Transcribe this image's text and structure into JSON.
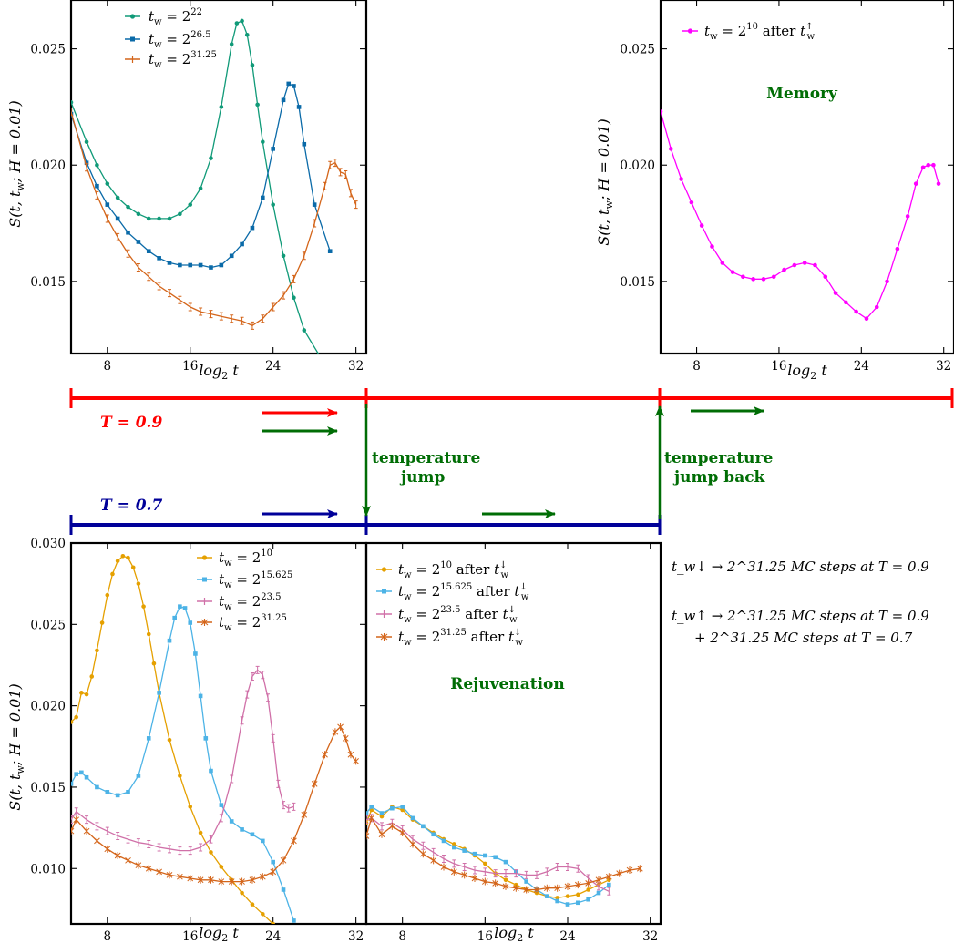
{
  "colors": {
    "red": "#ff0000",
    "blue": "#000099",
    "green": "#006d05",
    "green_series": "#109a78",
    "blue_series": "#0a6aa8",
    "orange_series": "#d4651a",
    "gold_series": "#e5a000",
    "sky_series": "#4cb3e6",
    "pink_series": "#d070a8",
    "magenta_series": "#ff00ff"
  },
  "timeline": {
    "T_high_label": "T = 0.9",
    "T_low_label": "T = 0.7",
    "jump_label_1": "temperature",
    "jump_label_2": "jump",
    "jump_back_label_1": "temperature",
    "jump_back_label_2": "jump back"
  },
  "notes": {
    "line1": "t_w↓ → 2^31.25 MC steps at T = 0.9",
    "line2": "t_w↑ → 2^31.25 MC steps at T = 0.9",
    "line3": "+ 2^31.25 MC steps at T = 0.7"
  },
  "chart_data": [
    {
      "id": "top-left",
      "type": "line",
      "xlabel": "log2 t",
      "ylabel": "S(t, t_w; H = 0.01)",
      "xlim": [
        4.5,
        33
      ],
      "ylim": [
        0.0119,
        0.0271
      ],
      "xticks": [
        8,
        16,
        24,
        32
      ],
      "yticks": [
        0.015,
        0.02,
        0.025
      ],
      "ytick_labels": [
        "0.015",
        "0.020",
        "0.025"
      ],
      "series": [
        {
          "name": "t_w = 2^22",
          "color": "#109a78",
          "marker": "circle",
          "x": [
            4.5,
            6,
            7,
            8,
            9,
            10,
            11,
            12,
            13,
            14,
            15,
            16,
            17,
            18,
            19,
            20,
            20.5,
            21,
            21.5,
            22,
            22.5,
            23,
            24,
            25,
            26,
            27,
            28.5
          ],
          "y": [
            0.0227,
            0.021,
            0.02,
            0.0192,
            0.0186,
            0.0182,
            0.0179,
            0.0177,
            0.0177,
            0.0177,
            0.0179,
            0.0183,
            0.019,
            0.0203,
            0.0225,
            0.0252,
            0.0261,
            0.0262,
            0.0256,
            0.0243,
            0.0226,
            0.021,
            0.0183,
            0.0161,
            0.0143,
            0.0129,
            0.0118
          ]
        },
        {
          "name": "t_w = 2^26.5",
          "color": "#0a6aa8",
          "marker": "square",
          "x": [
            4.5,
            6,
            7,
            8,
            9,
            10,
            11,
            12,
            13,
            14,
            15,
            16,
            17,
            18,
            19,
            20,
            21,
            22,
            23,
            24,
            25,
            25.5,
            26,
            26.5,
            27,
            28,
            29.5
          ],
          "y": [
            0.0222,
            0.0201,
            0.0191,
            0.0183,
            0.0177,
            0.0171,
            0.0167,
            0.0163,
            0.016,
            0.0158,
            0.0157,
            0.0157,
            0.0157,
            0.0156,
            0.0157,
            0.0161,
            0.0166,
            0.0173,
            0.0186,
            0.0207,
            0.0228,
            0.0235,
            0.0234,
            0.0225,
            0.0209,
            0.0183,
            0.0163
          ]
        },
        {
          "name": "t_w = 2^31.25",
          "color": "#d4651a",
          "marker": "bar",
          "x": [
            4.5,
            6,
            7,
            8,
            9,
            10,
            11,
            12,
            13,
            14,
            15,
            16,
            17,
            18,
            19,
            20,
            21,
            22,
            23,
            24,
            25,
            26,
            27,
            28,
            29,
            29.5,
            30,
            30.5,
            31,
            31.5,
            32
          ],
          "y": [
            0.0223,
            0.0199,
            0.0187,
            0.0177,
            0.0169,
            0.0162,
            0.0156,
            0.0152,
            0.0148,
            0.0145,
            0.0142,
            0.0139,
            0.0137,
            0.0136,
            0.0135,
            0.0134,
            0.0133,
            0.0131,
            0.0134,
            0.0139,
            0.0144,
            0.0151,
            0.0161,
            0.0175,
            0.0191,
            0.02,
            0.0201,
            0.0197,
            0.0196,
            0.0188,
            0.0183
          ]
        }
      ]
    },
    {
      "id": "top-right",
      "type": "line",
      "xlabel": "log2 t",
      "ylabel": "S(t, t_w; H = 0.01)",
      "annotation": "Memory",
      "xlim": [
        4.5,
        33
      ],
      "ylim": [
        0.0119,
        0.0271
      ],
      "xticks": [
        8,
        16,
        24,
        32
      ],
      "yticks": [
        0.015,
        0.02,
        0.025
      ],
      "ytick_labels": [
        "0.015",
        "0.020",
        "0.025"
      ],
      "series": [
        {
          "name": "t_w = 2^10 after t_w↑",
          "color": "#ff00ff",
          "marker": "circle",
          "x": [
            4.5,
            5.5,
            6.5,
            7.5,
            8.5,
            9.5,
            10.5,
            11.5,
            12.5,
            13.5,
            14.5,
            15.5,
            16.5,
            17.5,
            18.5,
            19.5,
            20.5,
            21.5,
            22.5,
            23.5,
            24.5,
            25.5,
            26.5,
            27.5,
            28.5,
            29.3,
            30,
            30.5,
            31,
            31.5
          ],
          "y": [
            0.0223,
            0.0207,
            0.0194,
            0.0184,
            0.0174,
            0.0165,
            0.0158,
            0.0154,
            0.0152,
            0.0151,
            0.0151,
            0.0152,
            0.0155,
            0.0157,
            0.0158,
            0.0157,
            0.0152,
            0.0145,
            0.0141,
            0.0137,
            0.0134,
            0.0139,
            0.015,
            0.0164,
            0.0178,
            0.0192,
            0.0199,
            0.02,
            0.02,
            0.0192
          ]
        }
      ]
    },
    {
      "id": "bottom-left",
      "type": "line",
      "xlabel": "log2 t",
      "ylabel": "S(t, t_w; H = 0.01)",
      "xlim": [
        4.5,
        33
      ],
      "ylim": [
        0.0066,
        0.03
      ],
      "xticks": [
        8,
        16,
        24,
        32
      ],
      "yticks": [
        0.01,
        0.015,
        0.02,
        0.025,
        0.03
      ],
      "ytick_labels": [
        "0.010",
        "0.015",
        "0.020",
        "0.025",
        "0.030"
      ],
      "series": [
        {
          "name": "t_w = 2^10",
          "color": "#e5a000",
          "marker": "circle",
          "x": [
            4.5,
            5,
            5.5,
            6,
            6.5,
            7,
            7.5,
            8,
            8.5,
            9,
            9.5,
            10,
            10.5,
            11,
            11.5,
            12,
            12.5,
            13,
            14,
            15,
            16,
            17,
            18,
            19,
            20,
            21,
            22,
            23,
            24
          ],
          "y": [
            0.019,
            0.0193,
            0.0208,
            0.0207,
            0.0218,
            0.0234,
            0.0251,
            0.0268,
            0.0281,
            0.0289,
            0.0292,
            0.0291,
            0.0285,
            0.0275,
            0.0261,
            0.0244,
            0.0226,
            0.0208,
            0.0179,
            0.0157,
            0.0138,
            0.0122,
            0.011,
            0.0101,
            0.0093,
            0.0085,
            0.0078,
            0.0072,
            0.0066
          ]
        },
        {
          "name": "t_w = 2^15.625",
          "color": "#4cb3e6",
          "marker": "square",
          "x": [
            4.5,
            5,
            5.5,
            6,
            7,
            8,
            9,
            10,
            11,
            12,
            13,
            14,
            14.5,
            15,
            15.5,
            16,
            16.5,
            17,
            17.5,
            18,
            19,
            20,
            21,
            22,
            23,
            24,
            25,
            26
          ],
          "y": [
            0.0152,
            0.0158,
            0.0159,
            0.0156,
            0.015,
            0.0147,
            0.0145,
            0.0147,
            0.0157,
            0.018,
            0.0208,
            0.024,
            0.0254,
            0.0261,
            0.026,
            0.0251,
            0.0232,
            0.0206,
            0.018,
            0.016,
            0.0139,
            0.0129,
            0.0124,
            0.0121,
            0.0117,
            0.0104,
            0.0087,
            0.0068
          ]
        },
        {
          "name": "t_w = 2^23.5",
          "color": "#d070a8",
          "marker": "bar",
          "x": [
            4.5,
            5,
            6,
            7,
            8,
            9,
            10,
            11,
            12,
            13,
            14,
            15,
            16,
            17,
            18,
            19,
            20,
            21,
            21.5,
            22,
            22.5,
            23,
            23.5,
            24,
            24.5,
            25,
            25.5,
            26
          ],
          "y": [
            0.013,
            0.0135,
            0.013,
            0.0126,
            0.0123,
            0.012,
            0.0118,
            0.0116,
            0.0115,
            0.0113,
            0.0112,
            0.0111,
            0.0111,
            0.0113,
            0.0118,
            0.0131,
            0.0155,
            0.0191,
            0.0207,
            0.0218,
            0.0222,
            0.0219,
            0.0205,
            0.018,
            0.0152,
            0.0139,
            0.0137,
            0.0138
          ]
        },
        {
          "name": "t_w = 2^31.25",
          "color": "#d4651a",
          "marker": "star",
          "x": [
            4.5,
            5,
            6,
            7,
            8,
            9,
            10,
            11,
            12,
            13,
            14,
            15,
            16,
            17,
            18,
            19,
            20,
            21,
            22,
            23,
            24,
            25,
            26,
            27,
            28,
            29,
            30,
            30.5,
            31,
            31.5,
            32
          ],
          "y": [
            0.0123,
            0.013,
            0.0123,
            0.0117,
            0.0112,
            0.0108,
            0.0105,
            0.0102,
            0.01,
            0.0098,
            0.0096,
            0.0095,
            0.0094,
            0.0093,
            0.0093,
            0.0092,
            0.0092,
            0.0092,
            0.0093,
            0.0095,
            0.0098,
            0.0105,
            0.0117,
            0.0133,
            0.0152,
            0.017,
            0.0184,
            0.0187,
            0.018,
            0.017,
            0.0166
          ]
        }
      ]
    },
    {
      "id": "bottom-right",
      "type": "line",
      "xlabel": "log2 t",
      "annotation": "Rejuvenation",
      "xlim": [
        4.5,
        33
      ],
      "ylim": [
        0.0066,
        0.03
      ],
      "xticks": [
        8,
        16,
        24,
        32
      ],
      "series": [
        {
          "name": "t_w = 2^10 after t_w↓",
          "color": "#e5a000",
          "marker": "circle",
          "x": [
            4.5,
            5,
            6,
            7,
            8,
            9,
            10,
            11,
            12,
            13,
            14,
            15,
            16,
            17,
            18,
            19,
            20,
            21,
            22,
            23,
            24,
            25,
            26,
            27,
            28
          ],
          "y": [
            0.0128,
            0.0136,
            0.0132,
            0.0138,
            0.0136,
            0.013,
            0.0126,
            0.0122,
            0.0118,
            0.0115,
            0.0112,
            0.0108,
            0.0103,
            0.0097,
            0.0093,
            0.009,
            0.0087,
            0.0085,
            0.0083,
            0.0082,
            0.0083,
            0.0084,
            0.0087,
            0.009,
            0.0093
          ]
        },
        {
          "name": "t_w = 2^15.625 after t_w↓",
          "color": "#4cb3e6",
          "marker": "square",
          "x": [
            4.5,
            5,
            6,
            7,
            8,
            9,
            10,
            11,
            12,
            13,
            14,
            15,
            16,
            17,
            18,
            19,
            20,
            21,
            22,
            23,
            24,
            25,
            26,
            27,
            28
          ],
          "y": [
            0.0134,
            0.0138,
            0.0134,
            0.0137,
            0.0138,
            0.0131,
            0.0126,
            0.0121,
            0.0117,
            0.0113,
            0.0111,
            0.0109,
            0.0108,
            0.0107,
            0.0104,
            0.0098,
            0.0092,
            0.0087,
            0.0083,
            0.008,
            0.0078,
            0.0079,
            0.0081,
            0.0085,
            0.009
          ]
        },
        {
          "name": "t_w = 2^23.5 after t_w↓",
          "color": "#d070a8",
          "marker": "bar",
          "x": [
            4.5,
            5,
            6,
            7,
            8,
            9,
            10,
            11,
            12,
            13,
            14,
            15,
            16,
            17,
            18,
            19,
            20,
            21,
            22,
            23,
            24,
            25,
            26,
            27,
            28
          ],
          "y": [
            0.013,
            0.0131,
            0.0126,
            0.0128,
            0.0124,
            0.0118,
            0.0114,
            0.011,
            0.0106,
            0.0103,
            0.0101,
            0.0099,
            0.0098,
            0.0097,
            0.0097,
            0.0097,
            0.0096,
            0.0096,
            0.0098,
            0.0101,
            0.0101,
            0.01,
            0.0094,
            0.0089,
            0.0086
          ]
        },
        {
          "name": "t_w = 2^31.25 after t_w↓",
          "color": "#d4651a",
          "marker": "star",
          "x": [
            4.5,
            5,
            6,
            7,
            8,
            9,
            10,
            11,
            12,
            13,
            14,
            15,
            16,
            17,
            18,
            19,
            20,
            21,
            22,
            23,
            24,
            25,
            26,
            27,
            28,
            29,
            30,
            31
          ],
          "y": [
            0.012,
            0.0131,
            0.0121,
            0.0126,
            0.0122,
            0.0115,
            0.0109,
            0.0105,
            0.0101,
            0.0098,
            0.0096,
            0.0094,
            0.0092,
            0.0091,
            0.0089,
            0.0088,
            0.0087,
            0.0087,
            0.0088,
            0.0088,
            0.0089,
            0.009,
            0.0091,
            0.0093,
            0.0095,
            0.0097,
            0.0099,
            0.01
          ]
        }
      ]
    }
  ]
}
